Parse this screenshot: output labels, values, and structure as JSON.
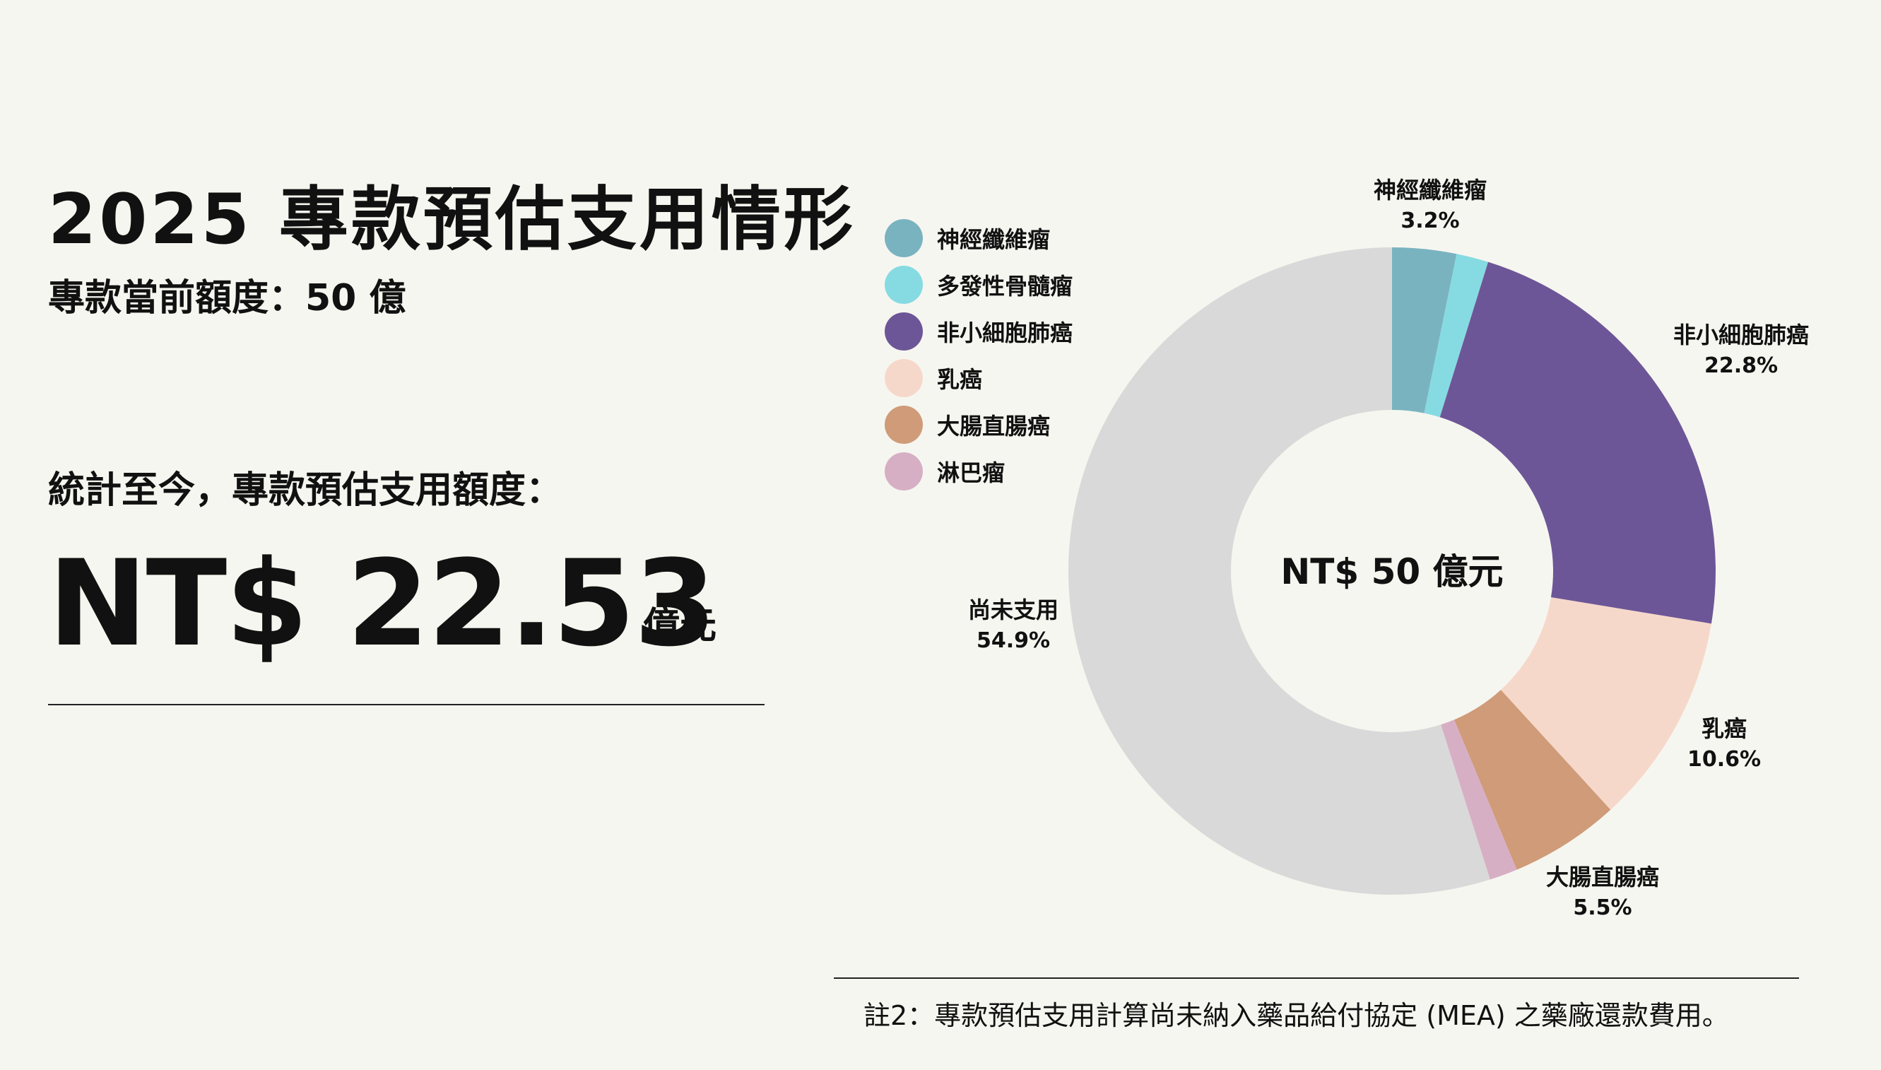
{
  "header": {
    "title": "2025 專款預估支用情形",
    "subtitle": "專款當前額度：50 億"
  },
  "stat": {
    "label": "統計至今，專款預估支用額度：",
    "value": "NT$ 22.53",
    "unit": "億元"
  },
  "footnote": "註2：專款預估支用計算尚未納入藥品給付協定 (MEA) 之藥廠還款費用。",
  "chart_data": {
    "type": "pie",
    "center_label": "NT$ 50 億元",
    "slices": [
      {
        "label": "神經纖維瘤",
        "value": 3.2,
        "display": "3.2%",
        "color": "#7ab3c0"
      },
      {
        "label": "多發性骨髓瘤",
        "value": 1.6,
        "display": "",
        "color": "#86dbe2"
      },
      {
        "label": "非小細胞肺癌",
        "value": 22.8,
        "display": "22.8%",
        "color": "#6d5697"
      },
      {
        "label": "乳癌",
        "value": 10.6,
        "display": "10.6%",
        "color": "#f6d8ca"
      },
      {
        "label": "大腸直腸癌",
        "value": 5.5,
        "display": "5.5%",
        "color": "#cf9b78"
      },
      {
        "label": "淋巴瘤",
        "value": 1.4,
        "display": "",
        "color": "#d7afc4"
      },
      {
        "label": "尚未支用",
        "value": 54.9,
        "display": "54.9%",
        "color": "#d9d9d9"
      }
    ],
    "legend": [
      "神經纖維瘤",
      "多發性骨髓瘤",
      "非小細胞肺癌",
      "乳癌",
      "大腸直腸癌",
      "淋巴瘤"
    ],
    "legend_position": "top-left"
  }
}
